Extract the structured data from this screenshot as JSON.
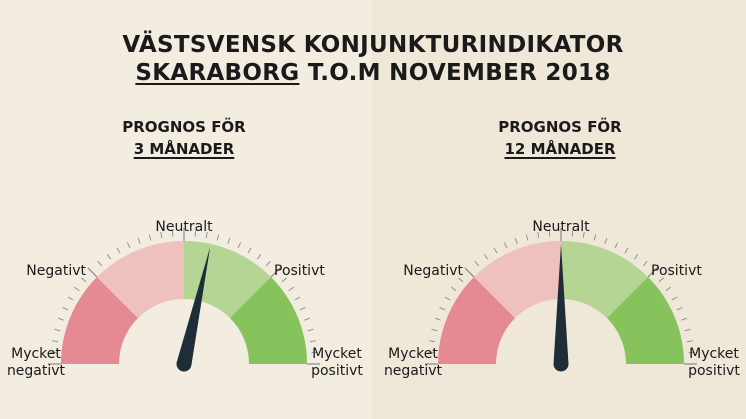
{
  "title": {
    "line1": "VÄSTSVENSK KONJUNKTURINDIKATOR",
    "region": "SKARABORG",
    "period": "T.O.M NOVEMBER 2018"
  },
  "colors": {
    "background_left": "#f2ece1",
    "background_right": "#efe7d8",
    "very_negative": "#e58a92",
    "negative": "#eec1be",
    "positive": "#b5d595",
    "very_positive": "#87c35d",
    "needle": "#1f2d38",
    "hub": "#f2ece1"
  },
  "chart_data": [
    {
      "type": "gauge",
      "title_prefix": "PROGNOS FÖR",
      "title_period": "3 MÅNADER",
      "zones": [
        "Mycket negativt",
        "Negativt",
        "Positivt",
        "Mycket positivt"
      ],
      "scale_labels": {
        "very_negative": [
          "Mycket",
          "negativt"
        ],
        "negative": "Negativt",
        "neutral": "Neutralt",
        "positive": "Positivt",
        "very_positive": [
          "Mycket",
          "positivt"
        ]
      },
      "range": [
        -1,
        1
      ],
      "value": 0.14
    },
    {
      "type": "gauge",
      "title_prefix": "PROGNOS FÖR",
      "title_period": "12 MÅNADER",
      "zones": [
        "Mycket negativt",
        "Negativt",
        "Positivt",
        "Mycket positivt"
      ],
      "scale_labels": {
        "very_negative": [
          "Mycket",
          "negativt"
        ],
        "negative": "Negativt",
        "neutral": "Neutralt",
        "positive": "Positivt",
        "very_positive": [
          "Mycket",
          "positivt"
        ]
      },
      "range": [
        -1,
        1
      ],
      "value": 0.0
    }
  ]
}
